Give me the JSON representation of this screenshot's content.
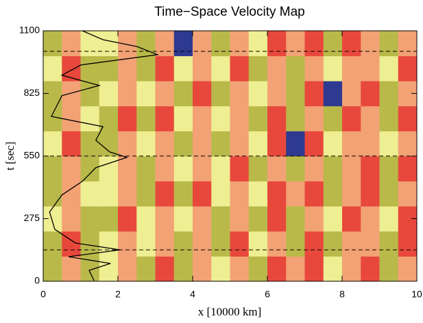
{
  "chart_data": {
    "type": "heatmap",
    "title": "Time−Space Velocity Map",
    "x_label": "x [10000 km]",
    "y_label": "t [sec]",
    "xlim": [
      0,
      10
    ],
    "ylim": [
      0,
      1100
    ],
    "xticks": [
      0,
      2,
      4,
      6,
      8,
      10
    ],
    "yticks": [
      0,
      275,
      550,
      825,
      1100
    ],
    "colormap": [
      "#2e3a8f",
      "#e8483c",
      "#f2a274",
      "#b9b94a",
      "#eeee92"
    ],
    "z": [
      [
        3,
        2,
        3,
        4,
        2,
        3,
        1,
        3,
        2,
        4,
        2,
        3,
        1,
        2,
        1,
        4,
        2,
        1,
        3,
        2
      ],
      [
        3,
        1,
        3,
        4,
        2,
        4,
        2,
        3,
        2,
        3,
        1,
        4,
        2,
        3,
        1,
        3,
        2,
        2,
        3,
        1
      ],
      [
        4,
        2,
        3,
        3,
        1,
        4,
        2,
        4,
        2,
        3,
        2,
        3,
        1,
        3,
        2,
        4,
        1,
        2,
        4,
        1
      ],
      [
        3,
        2,
        4,
        4,
        2,
        3,
        1,
        3,
        1,
        4,
        2,
        4,
        1,
        2,
        1,
        3,
        2,
        1,
        3,
        2
      ],
      [
        3,
        2,
        3,
        4,
        2,
        3,
        2,
        4,
        2,
        4,
        1,
        3,
        2,
        3,
        2,
        3,
        2,
        1,
        3,
        1
      ],
      [
        4,
        1,
        3,
        3,
        2,
        4,
        2,
        3,
        2,
        3,
        2,
        4,
        1,
        0,
        1,
        4,
        2,
        2,
        4,
        2
      ],
      [
        3,
        2,
        4,
        3,
        1,
        3,
        1,
        4,
        2,
        4,
        2,
        3,
        1,
        3,
        2,
        3,
        1,
        2,
        3,
        1
      ],
      [
        3,
        2,
        3,
        4,
        2,
        4,
        2,
        3,
        1,
        3,
        2,
        4,
        2,
        3,
        1,
        0,
        2,
        1,
        3,
        2
      ],
      [
        4,
        1,
        3,
        3,
        2,
        3,
        1,
        4,
        2,
        4,
        1,
        3,
        2,
        3,
        2,
        4,
        2,
        2,
        4,
        1
      ],
      [
        3,
        2,
        4,
        4,
        2,
        3,
        2,
        0,
        2,
        3,
        2,
        4,
        1,
        2,
        1,
        3,
        1,
        2,
        3,
        2
      ]
    ],
    "reference_lines": [
      138,
      550,
      1010
    ],
    "curve": {
      "color": "#000000",
      "x": [
        1.36,
        1.23,
        1.8,
        0.68,
        2.06,
        0.86,
        0.31,
        0.17,
        0.5,
        1.05,
        1.41,
        2.24,
        1.78,
        1.41,
        1.6,
        0.22,
        0.5,
        1.5,
        0.5,
        1.01,
        3.06,
        2.51,
        1.6,
        1.05
      ],
      "y": [
        3,
        48,
        78,
        108,
        138,
        168,
        228,
        304,
        379,
        439,
        499,
        544,
        568,
        619,
        679,
        724,
        815,
        860,
        905,
        950,
        995,
        1031,
        1061,
        1100
      ]
    }
  }
}
